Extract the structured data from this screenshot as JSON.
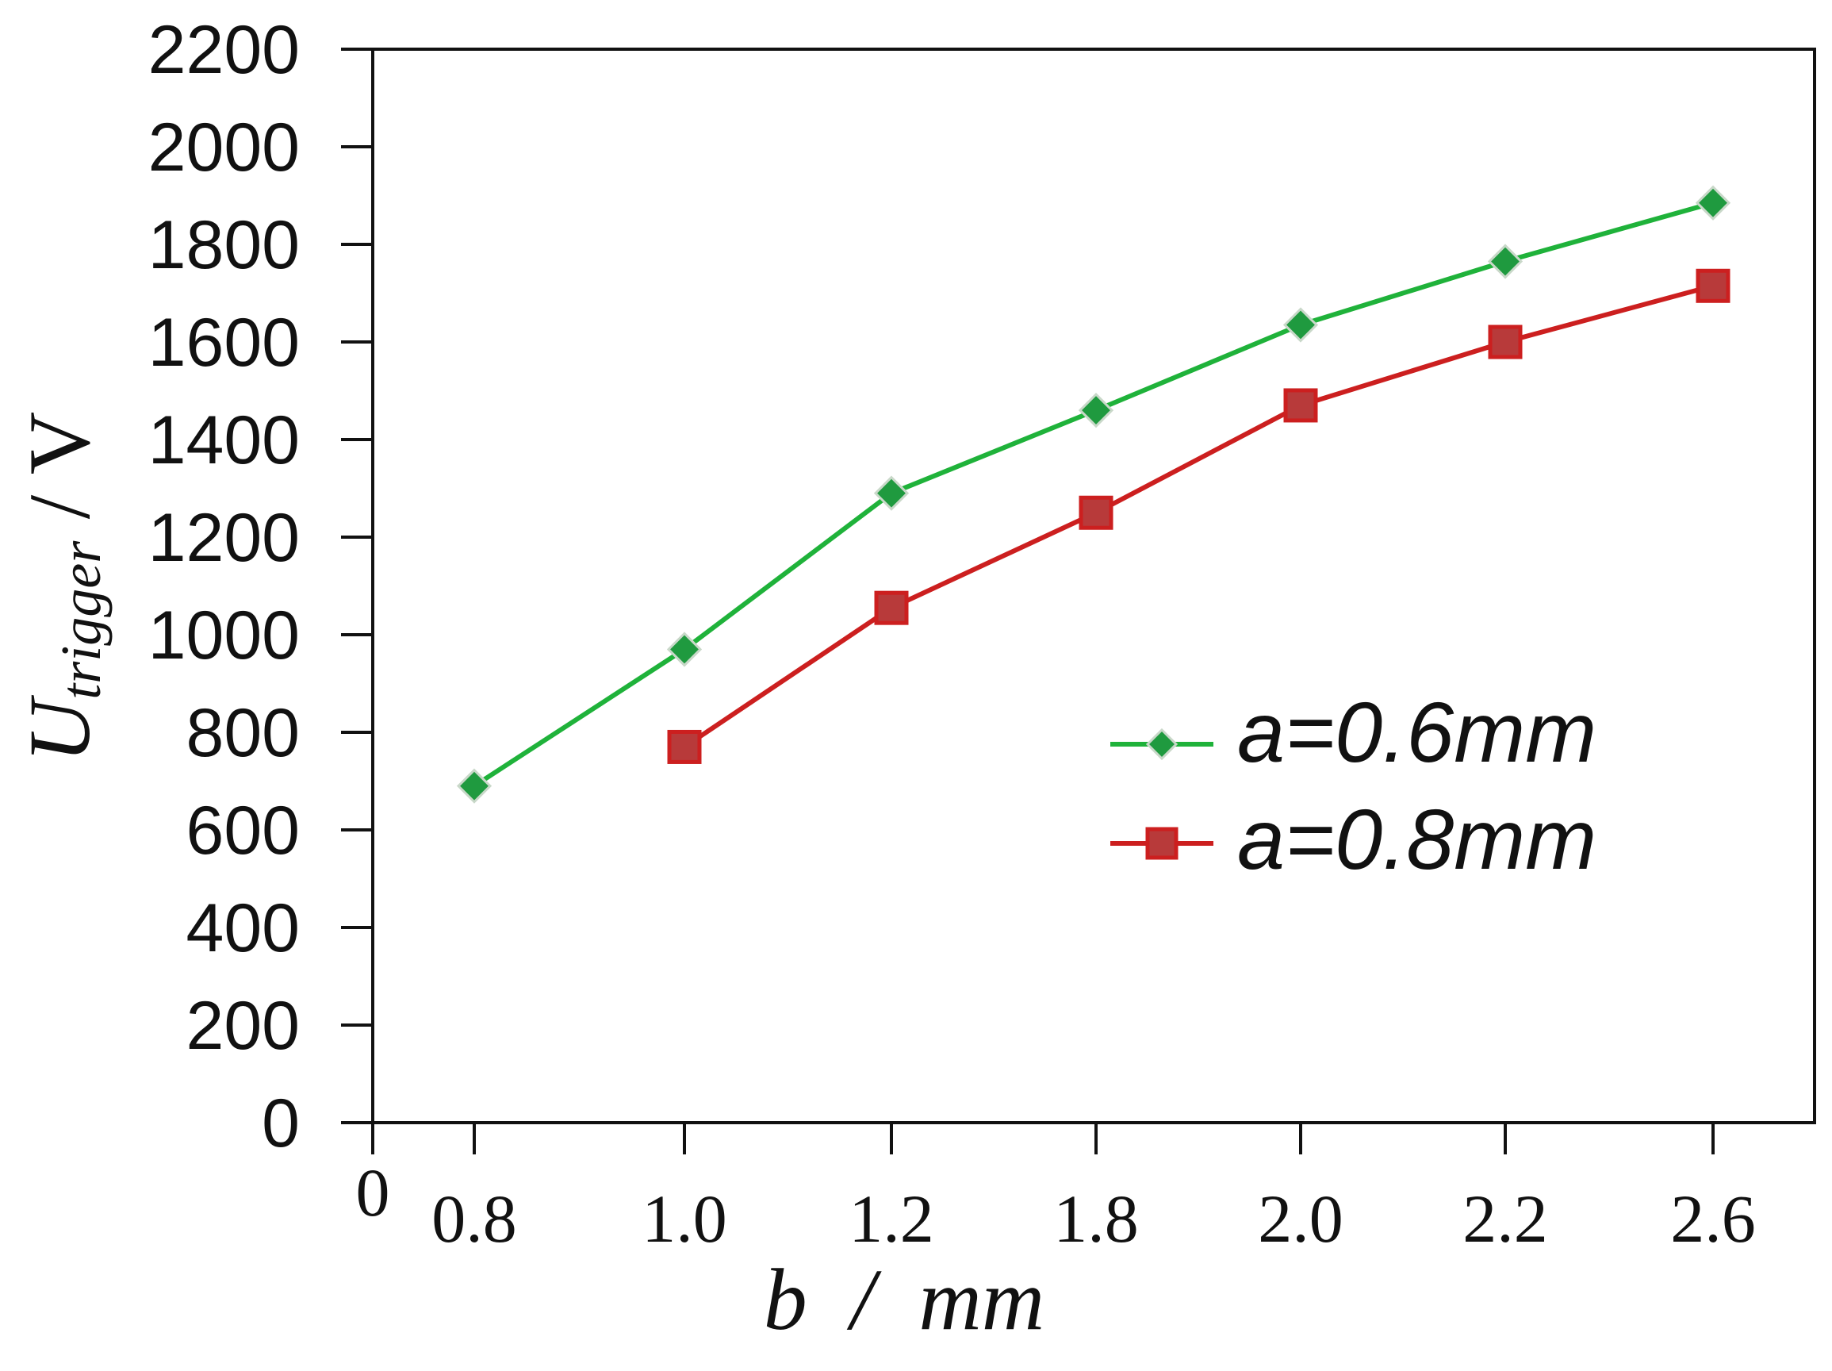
{
  "chart_data": {
    "type": "line",
    "title": "",
    "ylabel": {
      "main": "U",
      "subscript": "trigger",
      "unit": " / V"
    },
    "xlabel": {
      "var": "b",
      "unit": "  /  mm"
    },
    "ylim": [
      0,
      2200
    ],
    "y_ticks": [
      "0",
      "200",
      "400",
      "600",
      "800",
      "1000",
      "1200",
      "1400",
      "1600",
      "1800",
      "2000",
      "2200"
    ],
    "x_origin_label": "0",
    "categories": [
      "0.8",
      "1.0",
      "1.2",
      "1.8",
      "2.0",
      "2.2",
      "2.6"
    ],
    "legend_position": "right-middle",
    "series": [
      {
        "name": "a=0.6mm",
        "color": "#1fb23a",
        "marker": "diamond",
        "marker_color": "#1f9a3f",
        "values": [
          690,
          970,
          1290,
          1460,
          1635,
          1765,
          1885
        ]
      },
      {
        "name": "a=0.8mm",
        "color": "#cc1f1f",
        "marker": "square",
        "marker_color": "#b83a3a",
        "values": [
          null,
          770,
          1055,
          1250,
          1470,
          1600,
          1715
        ]
      }
    ]
  }
}
